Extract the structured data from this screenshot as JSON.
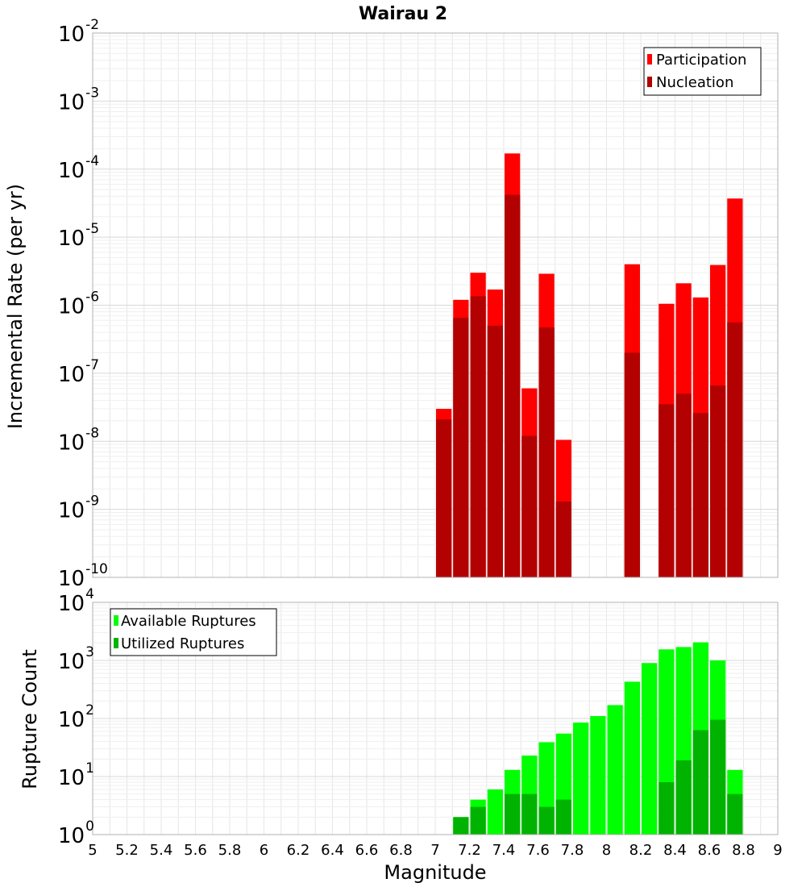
{
  "title": "Wairau 2",
  "colors": {
    "participation": "#ff0000",
    "nucleation": "#b30000",
    "available": "#00ff00",
    "utilized": "#00b300",
    "grid": "#e6e6e6",
    "frame": "#b0b0b0"
  },
  "chart_data": [
    {
      "type": "bar",
      "panel": "rate",
      "ylabel": "Incremental Rate (per yr)",
      "yscale": "log",
      "ylim": [
        1e-10,
        0.01
      ],
      "xlim": [
        5,
        9
      ],
      "y_tick_exponents": [
        -10,
        -9,
        -8,
        -7,
        -6,
        -5,
        -4,
        -3,
        -2
      ],
      "grid": true,
      "legend_position": "top-right",
      "series": [
        {
          "name": "Participation",
          "x": [
            7.05,
            7.15,
            7.25,
            7.35,
            7.45,
            7.55,
            7.65,
            7.75,
            8.15,
            8.35,
            8.45,
            8.55,
            8.65,
            8.75
          ],
          "values": [
            3e-08,
            1.2e-06,
            3e-06,
            1.7e-06,
            0.00017,
            6e-08,
            2.9e-06,
            1.05e-08,
            4e-06,
            1.05e-06,
            2.1e-06,
            1.3e-06,
            3.9e-06,
            3.7e-05
          ]
        },
        {
          "name": "Nucleation",
          "x": [
            7.05,
            7.15,
            7.25,
            7.35,
            7.45,
            7.55,
            7.65,
            7.75,
            8.15,
            8.35,
            8.45,
            8.55,
            8.65,
            8.75
          ],
          "values": [
            2.1e-08,
            6.5e-07,
            1.35e-06,
            5e-07,
            4.2e-05,
            1.2e-08,
            4.7e-07,
            1.3e-09,
            2e-07,
            3.5e-08,
            5e-08,
            2.6e-08,
            6.6e-08,
            5.6e-07
          ]
        }
      ]
    },
    {
      "type": "bar",
      "panel": "count",
      "ylabel": "Rupture Count",
      "xlabel": "Magnitude",
      "yscale": "log",
      "ylim": [
        1,
        10000
      ],
      "xlim": [
        5,
        9
      ],
      "y_tick_exponents": [
        0,
        1,
        2,
        3,
        4
      ],
      "x_ticks": [
        "5",
        "5.2",
        "5.4",
        "5.6",
        "5.8",
        "6",
        "6.2",
        "6.4",
        "6.6",
        "6.8",
        "7",
        "7.2",
        "7.4",
        "7.6",
        "7.8",
        "8",
        "8.2",
        "8.4",
        "8.6",
        "8.8",
        "9"
      ],
      "grid": true,
      "legend_position": "top-left",
      "series": [
        {
          "name": "Available Ruptures",
          "x": [
            6.85,
            7.05,
            7.15,
            7.25,
            7.35,
            7.45,
            7.55,
            7.65,
            7.75,
            7.85,
            7.95,
            8.05,
            8.15,
            8.25,
            8.35,
            8.45,
            8.55,
            8.65,
            8.75
          ],
          "values": [
            1,
            1,
            2,
            4,
            6,
            13,
            23,
            39,
            55,
            85,
            110,
            170,
            430,
            900,
            1550,
            1700,
            2050,
            1000,
            13
          ]
        },
        {
          "name": "Utilized Ruptures",
          "x": [
            7.05,
            7.15,
            7.25,
            7.35,
            7.45,
            7.55,
            7.65,
            7.75,
            7.85,
            7.95,
            8.15,
            8.25,
            8.35,
            8.45,
            8.55,
            8.65,
            8.75
          ],
          "values": [
            1,
            2,
            3,
            1,
            5,
            5,
            3,
            4,
            1,
            1,
            1,
            1,
            8,
            19,
            63,
            95,
            5
          ]
        }
      ]
    }
  ]
}
